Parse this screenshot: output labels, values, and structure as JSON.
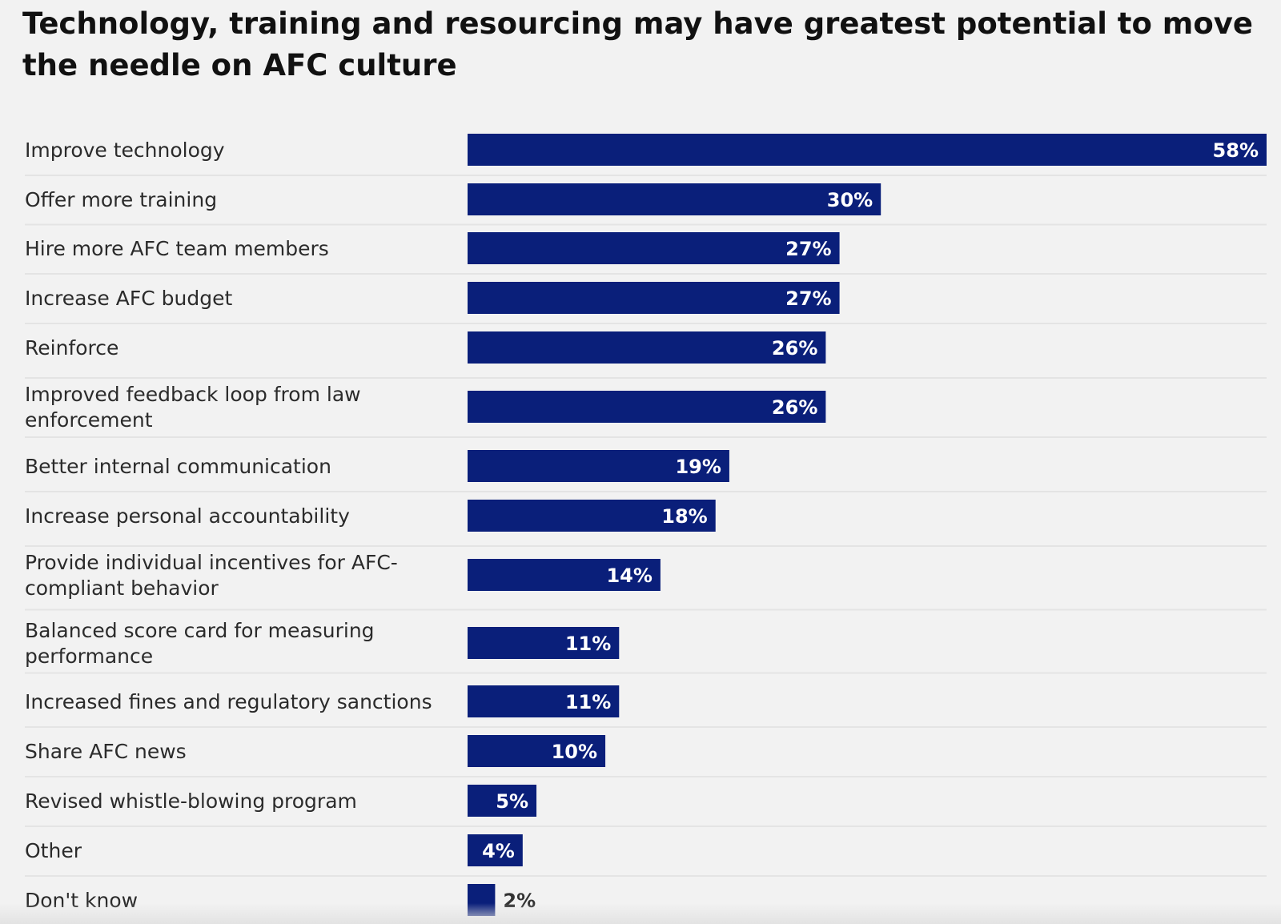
{
  "chart_data": {
    "type": "bar",
    "orientation": "horizontal",
    "title": "Technology, training and resourcing may have greatest potential to move the needle on AFC culture",
    "xlabel": "",
    "ylabel": "",
    "xlim": [
      0,
      58
    ],
    "grid": false,
    "value_format": "percent",
    "bar_color": "#0a1f7a",
    "categories": [
      "Improve technology",
      "Offer more training",
      "Hire more AFC team members",
      "Increase AFC budget",
      "Reinforce",
      "Improved feedback loop from law enforcement",
      "Better internal communication",
      "Increase personal accountability",
      "Provide individual incentives for AFC-compliant behavior",
      "Balanced score card for measuring performance",
      "Increased fines and regulatory sanctions",
      "Share AFC news",
      "Revised whistle-blowing program",
      "Other",
      "Don't know"
    ],
    "category_lines": [
      [
        "Improve technology"
      ],
      [
        "Offer more training"
      ],
      [
        "Hire more AFC team members"
      ],
      [
        "Increase AFC budget"
      ],
      [
        "Reinforce"
      ],
      [
        "Improved feedback loop from law",
        "enforcement"
      ],
      [
        "Better internal communication"
      ],
      [
        "Increase personal accountability"
      ],
      [
        "Provide individual incentives for AFC-",
        "compliant behavior"
      ],
      [
        "Balanced score card for measuring",
        "performance"
      ],
      [
        "Increased fines and regulatory sanctions"
      ],
      [
        "Share AFC news"
      ],
      [
        "Revised whistle-blowing program"
      ],
      [
        "Other"
      ],
      [
        "Don't know"
      ]
    ],
    "values": [
      58,
      30,
      27,
      27,
      26,
      26,
      19,
      18,
      14,
      11,
      11,
      10,
      5,
      4,
      2
    ],
    "value_labels": [
      "58%",
      "30%",
      "27%",
      "27%",
      "26%",
      "26%",
      "19%",
      "18%",
      "14%",
      "11%",
      "11%",
      "10%",
      "5%",
      "4%",
      "2%"
    ]
  }
}
